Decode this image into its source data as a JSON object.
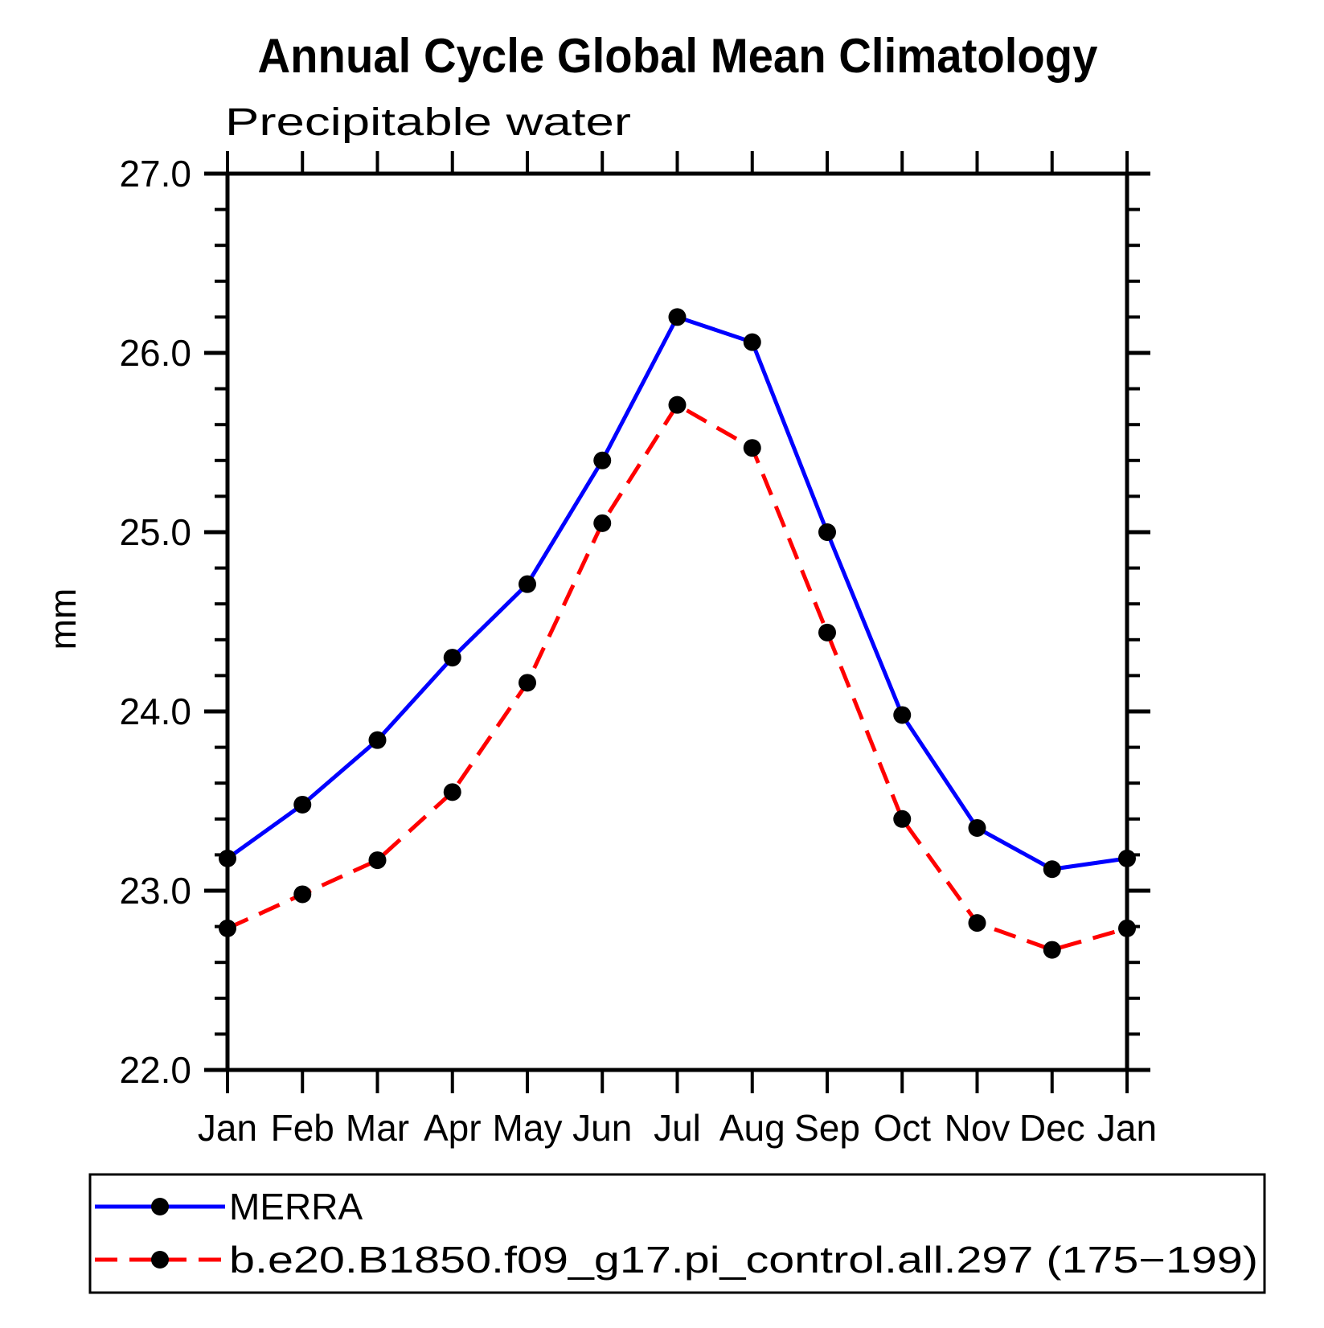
{
  "header": {
    "title": "Annual Cycle Global Mean Climatology"
  },
  "chart_data": {
    "type": "line",
    "title": "Precipitable water",
    "ylabel": "mm",
    "xlabel": "",
    "categories": [
      "Jan",
      "Feb",
      "Mar",
      "Apr",
      "May",
      "Jun",
      "Jul",
      "Aug",
      "Sep",
      "Oct",
      "Nov",
      "Dec",
      "Jan"
    ],
    "ylim": [
      22.0,
      27.0
    ],
    "ytick_major_step": 1.0,
    "ytick_minor_step": 0.2,
    "ytick_labels": [
      "22.0",
      "23.0",
      "24.0",
      "25.0",
      "26.0",
      "27.0"
    ],
    "grid": "off",
    "legend_position": "bottom",
    "axis_color": "#000000",
    "marker_color": "#000000",
    "series": [
      {
        "name": "MERRA",
        "color": "#0000ff",
        "line_style": "solid",
        "values": [
          23.18,
          23.48,
          23.84,
          24.3,
          24.71,
          25.4,
          26.2,
          26.06,
          25.0,
          23.98,
          23.35,
          23.12,
          23.18
        ]
      },
      {
        "name": "b.e20.B1850.f09_g17.pi_control.all.297 (175−199)",
        "color": "#ff0000",
        "line_style": "dashed",
        "values": [
          22.79,
          22.98,
          23.17,
          23.55,
          24.16,
          25.05,
          25.71,
          25.47,
          24.44,
          23.4,
          22.82,
          22.67,
          22.79
        ]
      }
    ]
  }
}
